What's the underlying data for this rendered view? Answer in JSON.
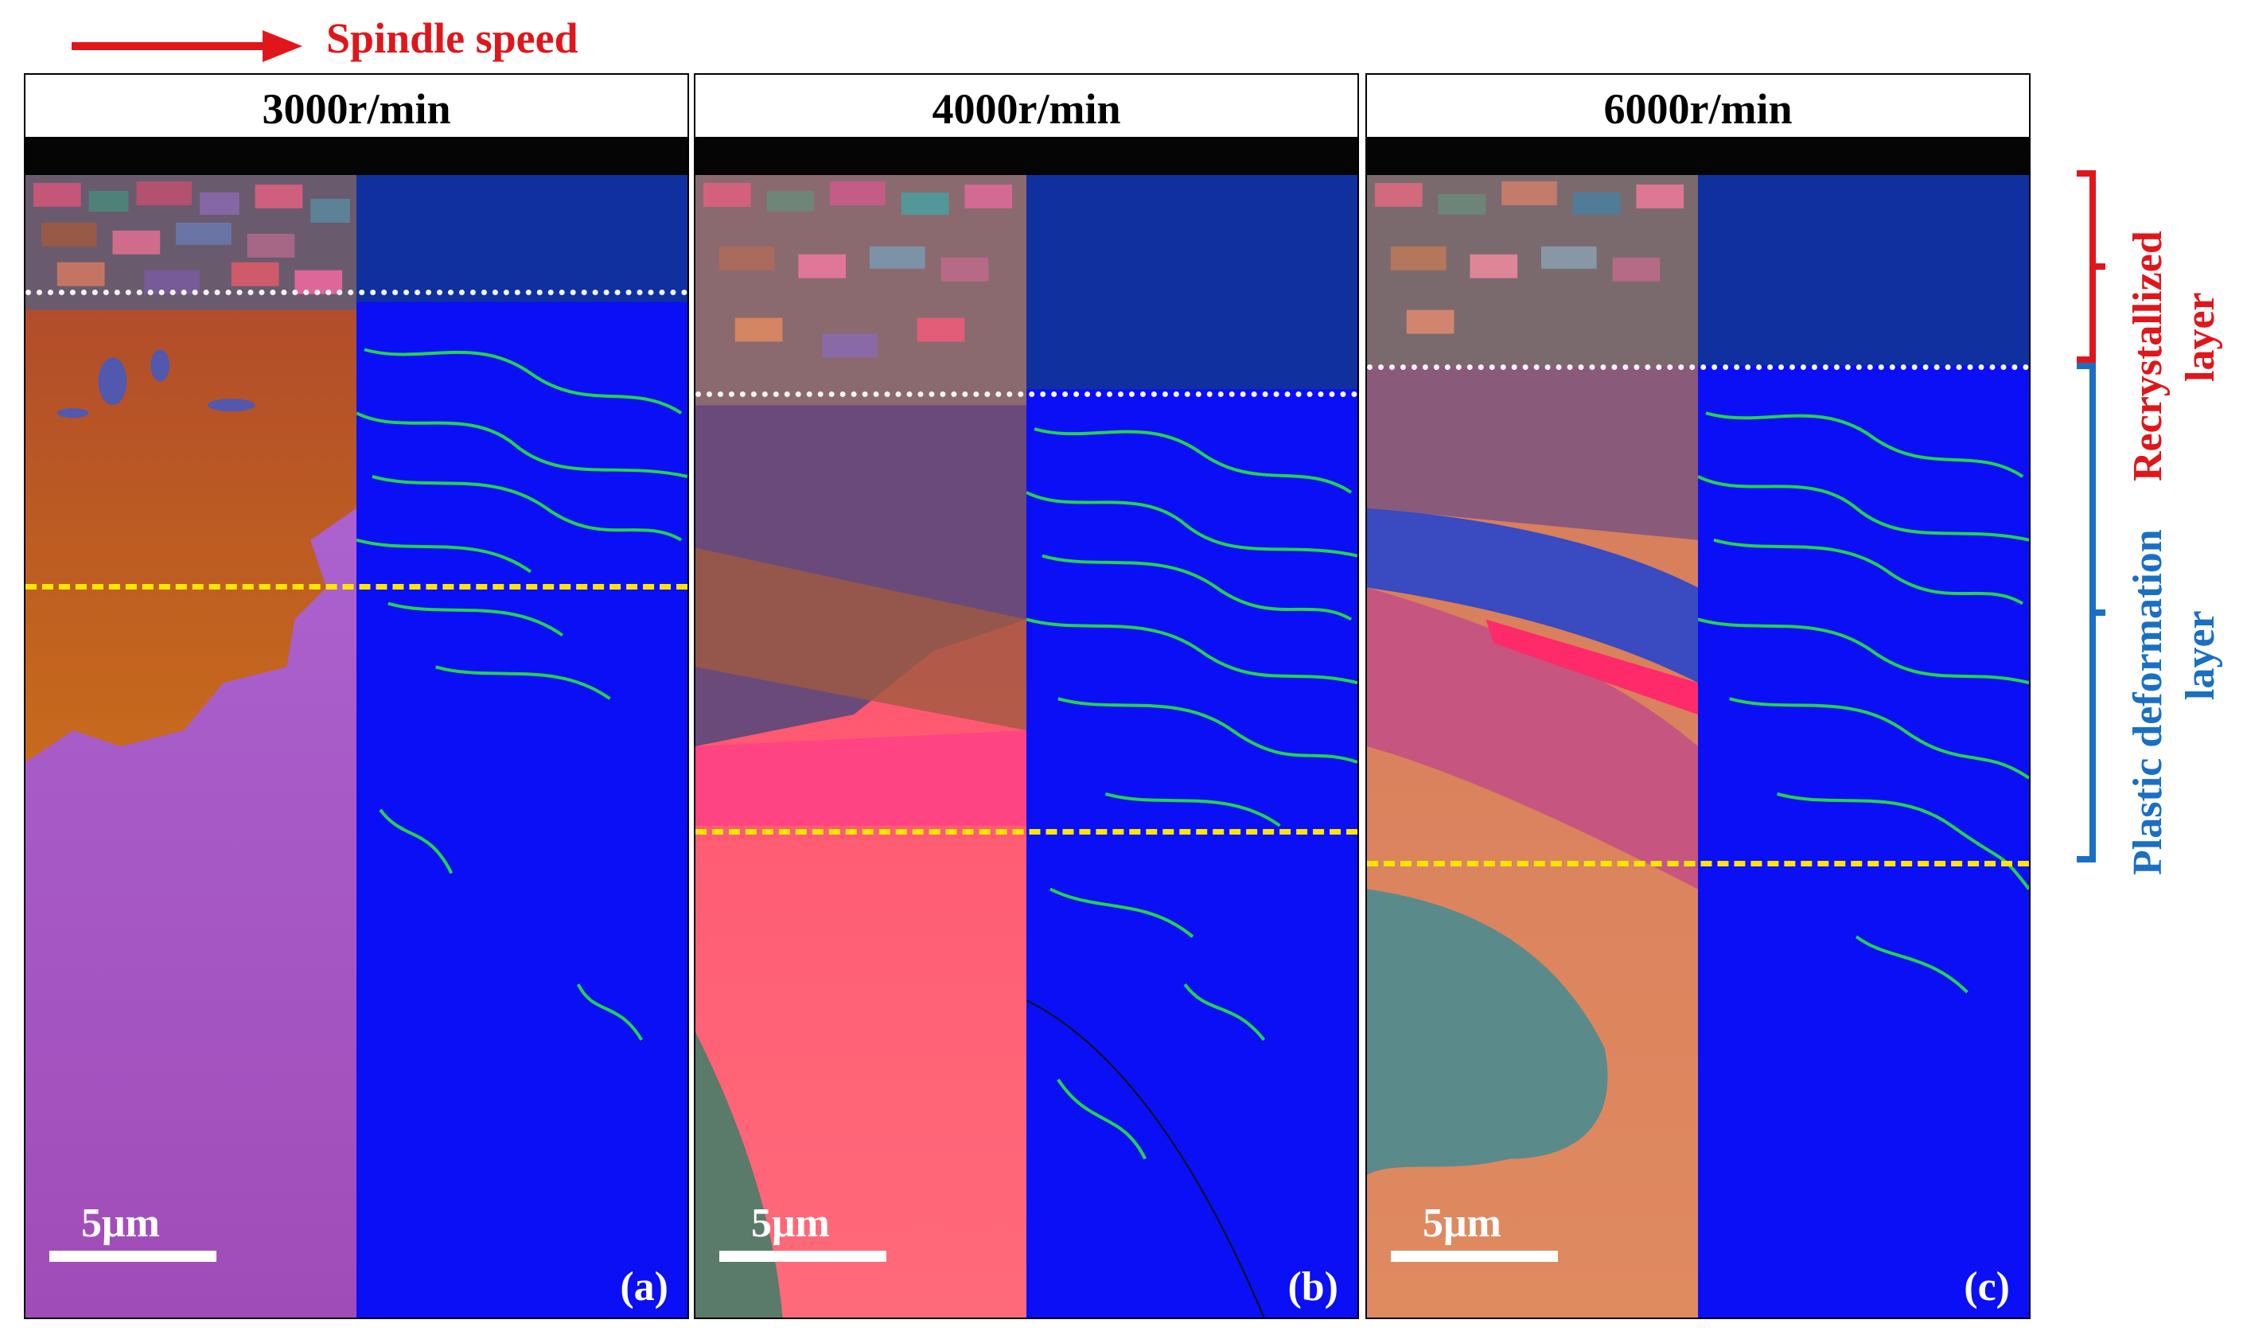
{
  "header": {
    "speed_label": "Spindle speed",
    "arrow_color": "#e0161b"
  },
  "panels": [
    {
      "title": "3000r/min",
      "id": "(a)",
      "scale": "5μm"
    },
    {
      "title": "4000r/min",
      "id": "(b)",
      "scale": "5μm"
    },
    {
      "title": "6000r/min",
      "id": "(c)",
      "scale": "5μm"
    }
  ],
  "legend": {
    "recrystallized": {
      "line1": "Recrystallized",
      "line2": "layer",
      "color": "#e0161b"
    },
    "plastic": {
      "line1": "Plastic deformation",
      "line2": "layer",
      "color": "#1a6fc4"
    }
  },
  "colors": {
    "dotted_boundary": "#f5f5f5",
    "dashed_boundary": "#ffe600",
    "kam_background": "#0a0ff5",
    "kam_highlight": "#2cf52c"
  }
}
